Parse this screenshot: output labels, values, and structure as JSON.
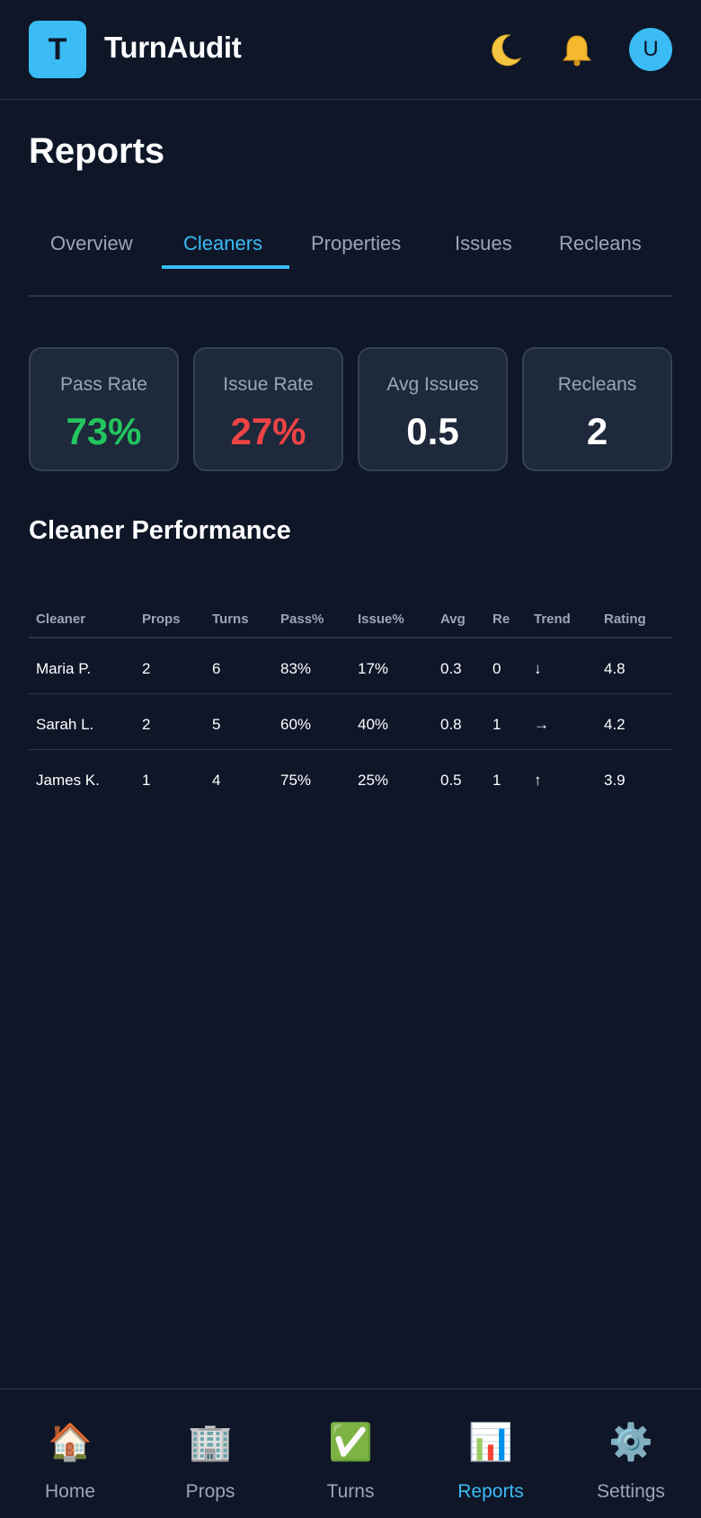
{
  "app": {
    "logo_letter": "T",
    "name": "TurnAudit",
    "avatar_letter": "U",
    "accent": "#3bbcf4"
  },
  "page": {
    "title": "Reports"
  },
  "tabs": [
    {
      "label": "Overview",
      "active": false
    },
    {
      "label": "Cleaners",
      "active": true
    },
    {
      "label": "Properties",
      "active": false
    },
    {
      "label": "Issues",
      "active": false
    },
    {
      "label": "Recleans",
      "active": false
    }
  ],
  "stats": [
    {
      "label": "Pass Rate",
      "value": "73%",
      "color": "#22c55e"
    },
    {
      "label": "Issue Rate",
      "value": "27%",
      "color": "#ef4444"
    },
    {
      "label": "Avg Issues",
      "value": "0.5",
      "color": "#ffffff"
    },
    {
      "label": "Recleans",
      "value": "2",
      "color": "#ffffff"
    }
  ],
  "section": {
    "title": "Cleaner Performance"
  },
  "table": {
    "headers": [
      "Cleaner",
      "Props",
      "Turns",
      "Pass%",
      "Issue%",
      "Avg",
      "Re",
      "Trend",
      "Rating"
    ],
    "rows": [
      [
        "Maria P.",
        "2",
        "6",
        "83%",
        "17%",
        "0.3",
        "0",
        "↓",
        "4.8"
      ],
      [
        "Sarah L.",
        "2",
        "5",
        "60%",
        "40%",
        "0.8",
        "1",
        "→",
        "4.2"
      ],
      [
        "James K.",
        "1",
        "4",
        "75%",
        "25%",
        "0.5",
        "1",
        "↑",
        "3.9"
      ]
    ]
  },
  "nav": [
    {
      "label": "Home",
      "icon": "🏠",
      "icon_name": "home-icon",
      "active": false
    },
    {
      "label": "Props",
      "icon": "🏢",
      "icon_name": "building-icon",
      "active": false
    },
    {
      "label": "Turns",
      "icon": "✅",
      "icon_name": "checkbox-icon",
      "active": false
    },
    {
      "label": "Reports",
      "icon": "📊",
      "icon_name": "bar-chart-icon",
      "active": true
    },
    {
      "label": "Settings",
      "icon": "⚙️",
      "icon_name": "gear-icon",
      "active": false
    }
  ],
  "header_icons": {
    "theme": "🌙",
    "notifications": "🔔"
  }
}
